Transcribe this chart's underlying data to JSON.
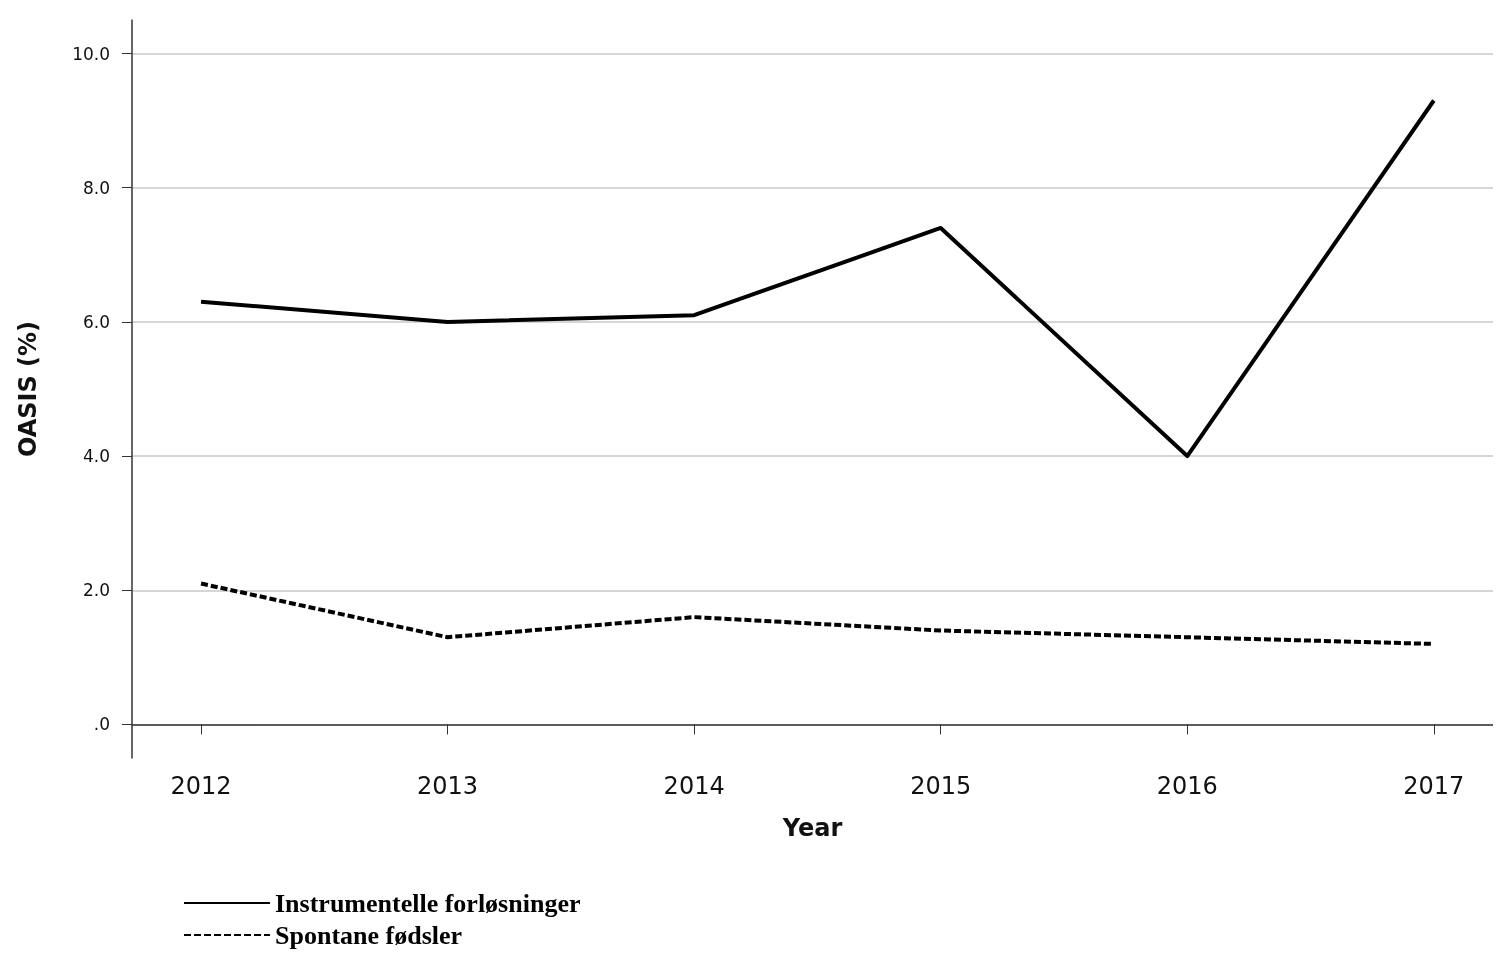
{
  "chart_data": {
    "type": "line",
    "xlabel": "Year",
    "ylabel": "OASIS (%)",
    "x": [
      2012,
      2013,
      2014,
      2015,
      2016,
      2017
    ],
    "series": [
      {
        "name": "Instrumentelle forløsninger",
        "color": "#000000",
        "line_style": "solid",
        "values": [
          6.3,
          6.0,
          6.1,
          7.4,
          4.0,
          9.3
        ]
      },
      {
        "name": "Spontane fødsler",
        "color": "#000000",
        "line_style": "dotted",
        "values": [
          2.1,
          1.3,
          1.6,
          1.4,
          1.3,
          1.2
        ]
      }
    ],
    "xlim": [
      2011.72,
      2017.24
    ],
    "xticks": [
      2012,
      2013,
      2014,
      2015,
      2016,
      2017
    ],
    "ylim": [
      -0.5,
      10.5
    ],
    "yticks": [
      {
        "value": 0,
        "label": ".0"
      },
      {
        "value": 2,
        "label": "2.0"
      },
      {
        "value": 4,
        "label": "4.0"
      },
      {
        "value": 6,
        "label": "6.0"
      },
      {
        "value": 8,
        "label": "8.0"
      },
      {
        "value": 10,
        "label": "10.0"
      }
    ],
    "grid": "y",
    "legend": "bottom left",
    "marker": "none"
  }
}
